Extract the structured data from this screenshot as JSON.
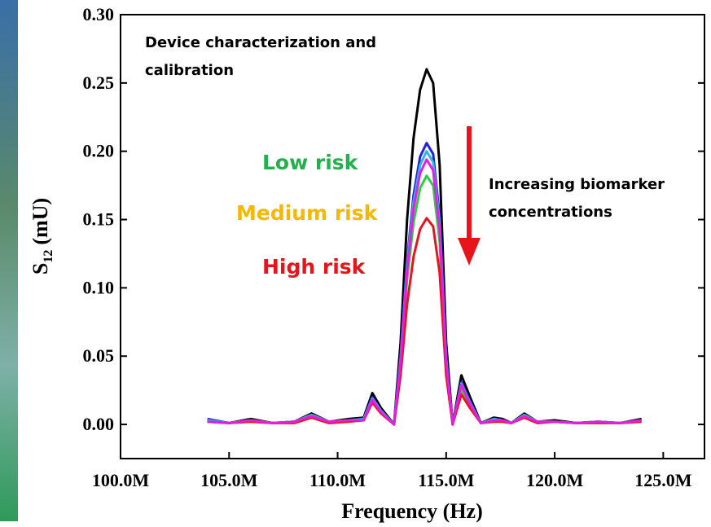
{
  "chart_data": {
    "type": "line",
    "xlabel": "Frequency (Hz)",
    "ylabel": {
      "main": "S",
      "sub": "12",
      "unit": "(mU)"
    },
    "x": [
      104,
      105,
      106,
      107,
      108,
      108.8,
      109.6,
      110.5,
      111.2,
      111.6,
      112.0,
      112.6,
      112.9,
      113.2,
      113.5,
      113.8,
      114.1,
      114.4,
      114.7,
      115.0,
      115.3,
      115.7,
      116.1,
      116.6,
      117.2,
      117.6,
      118.0,
      118.6,
      119.2,
      120.0,
      121.0,
      122.0,
      123.0,
      124.0
    ],
    "series": [
      {
        "color": "#000000",
        "values": [
          0.003,
          0.001,
          0.004,
          0.001,
          0.002,
          0.008,
          0.002,
          0.004,
          0.005,
          0.023,
          0.012,
          0.0,
          0.06,
          0.15,
          0.21,
          0.245,
          0.26,
          0.25,
          0.19,
          0.06,
          0.0,
          0.036,
          0.02,
          0.001,
          0.005,
          0.004,
          0.001,
          0.008,
          0.002,
          0.003,
          0.001,
          0.002,
          0.001,
          0.004
        ]
      },
      {
        "color": "#1f1fe0",
        "values": [
          0.004,
          0.001,
          0.003,
          0.001,
          0.002,
          0.007,
          0.002,
          0.003,
          0.004,
          0.02,
          0.01,
          0.0,
          0.05,
          0.12,
          0.168,
          0.196,
          0.206,
          0.198,
          0.152,
          0.05,
          0.0,
          0.031,
          0.017,
          0.001,
          0.004,
          0.003,
          0.001,
          0.007,
          0.002,
          0.002,
          0.001,
          0.002,
          0.001,
          0.003
        ]
      },
      {
        "color": "#33b5e5",
        "values": [
          0.003,
          0.001,
          0.003,
          0.001,
          0.002,
          0.007,
          0.002,
          0.003,
          0.004,
          0.019,
          0.01,
          0.0,
          0.048,
          0.117,
          0.163,
          0.19,
          0.2,
          0.192,
          0.148,
          0.048,
          0.0,
          0.03,
          0.016,
          0.001,
          0.004,
          0.003,
          0.001,
          0.007,
          0.002,
          0.002,
          0.001,
          0.002,
          0.001,
          0.003
        ]
      },
      {
        "color": "#2ecc40",
        "values": [
          0.002,
          0.001,
          0.003,
          0.001,
          0.002,
          0.006,
          0.002,
          0.003,
          0.003,
          0.017,
          0.009,
          0.0,
          0.043,
          0.106,
          0.148,
          0.173,
          0.182,
          0.175,
          0.134,
          0.043,
          0.0,
          0.026,
          0.014,
          0.001,
          0.003,
          0.002,
          0.001,
          0.006,
          0.002,
          0.002,
          0.001,
          0.002,
          0.001,
          0.003
        ]
      },
      {
        "color": "#e8141c",
        "values": [
          0.002,
          0.001,
          0.002,
          0.001,
          0.001,
          0.005,
          0.001,
          0.002,
          0.003,
          0.016,
          0.008,
          0.0,
          0.036,
          0.088,
          0.123,
          0.143,
          0.151,
          0.145,
          0.111,
          0.036,
          0.0,
          0.022,
          0.012,
          0.001,
          0.002,
          0.002,
          0.001,
          0.005,
          0.001,
          0.002,
          0.001,
          0.001,
          0.001,
          0.002
        ]
      },
      {
        "color": "#e020e0",
        "values": [
          0.002,
          0.001,
          0.003,
          0.001,
          0.002,
          0.006,
          0.002,
          0.003,
          0.003,
          0.018,
          0.009,
          0.0,
          0.046,
          0.113,
          0.158,
          0.184,
          0.194,
          0.186,
          0.143,
          0.046,
          0.0,
          0.029,
          0.015,
          0.001,
          0.003,
          0.003,
          0.001,
          0.006,
          0.002,
          0.002,
          0.001,
          0.002,
          0.001,
          0.003
        ]
      }
    ],
    "xlim": [
      100,
      126.9
    ],
    "ylim": [
      -0.025,
      0.3
    ],
    "xticks": [
      {
        "value": 100,
        "label": "100.0M"
      },
      {
        "value": 105,
        "label": "105.0M"
      },
      {
        "value": 110,
        "label": "110.0M"
      },
      {
        "value": 115,
        "label": "115.0M"
      },
      {
        "value": 120,
        "label": "120.0M"
      },
      {
        "value": 125,
        "label": "125.0M"
      }
    ],
    "yticks": [
      {
        "value": 0,
        "label": "0.00"
      },
      {
        "value": 0.05,
        "label": "0.05"
      },
      {
        "value": 0.1,
        "label": "0.10"
      },
      {
        "value": 0.15,
        "label": "0.15"
      },
      {
        "value": 0.2,
        "label": "0.20"
      },
      {
        "value": 0.25,
        "label": "0.25"
      },
      {
        "value": 0.3,
        "label": "0.30"
      }
    ],
    "annotations": [
      {
        "text": "Device characterization and",
        "color": "#000000"
      },
      {
        "text": "calibration",
        "color": "#000000"
      },
      {
        "text": "Low risk",
        "color": "#22b14c"
      },
      {
        "text": "Medium risk",
        "color": "#f5b800"
      },
      {
        "text": "High risk",
        "color": "#e8141c"
      },
      {
        "text": "Increasing biomarker",
        "color": "#000000"
      },
      {
        "text": "concentrations",
        "color": "#000000"
      }
    ]
  }
}
